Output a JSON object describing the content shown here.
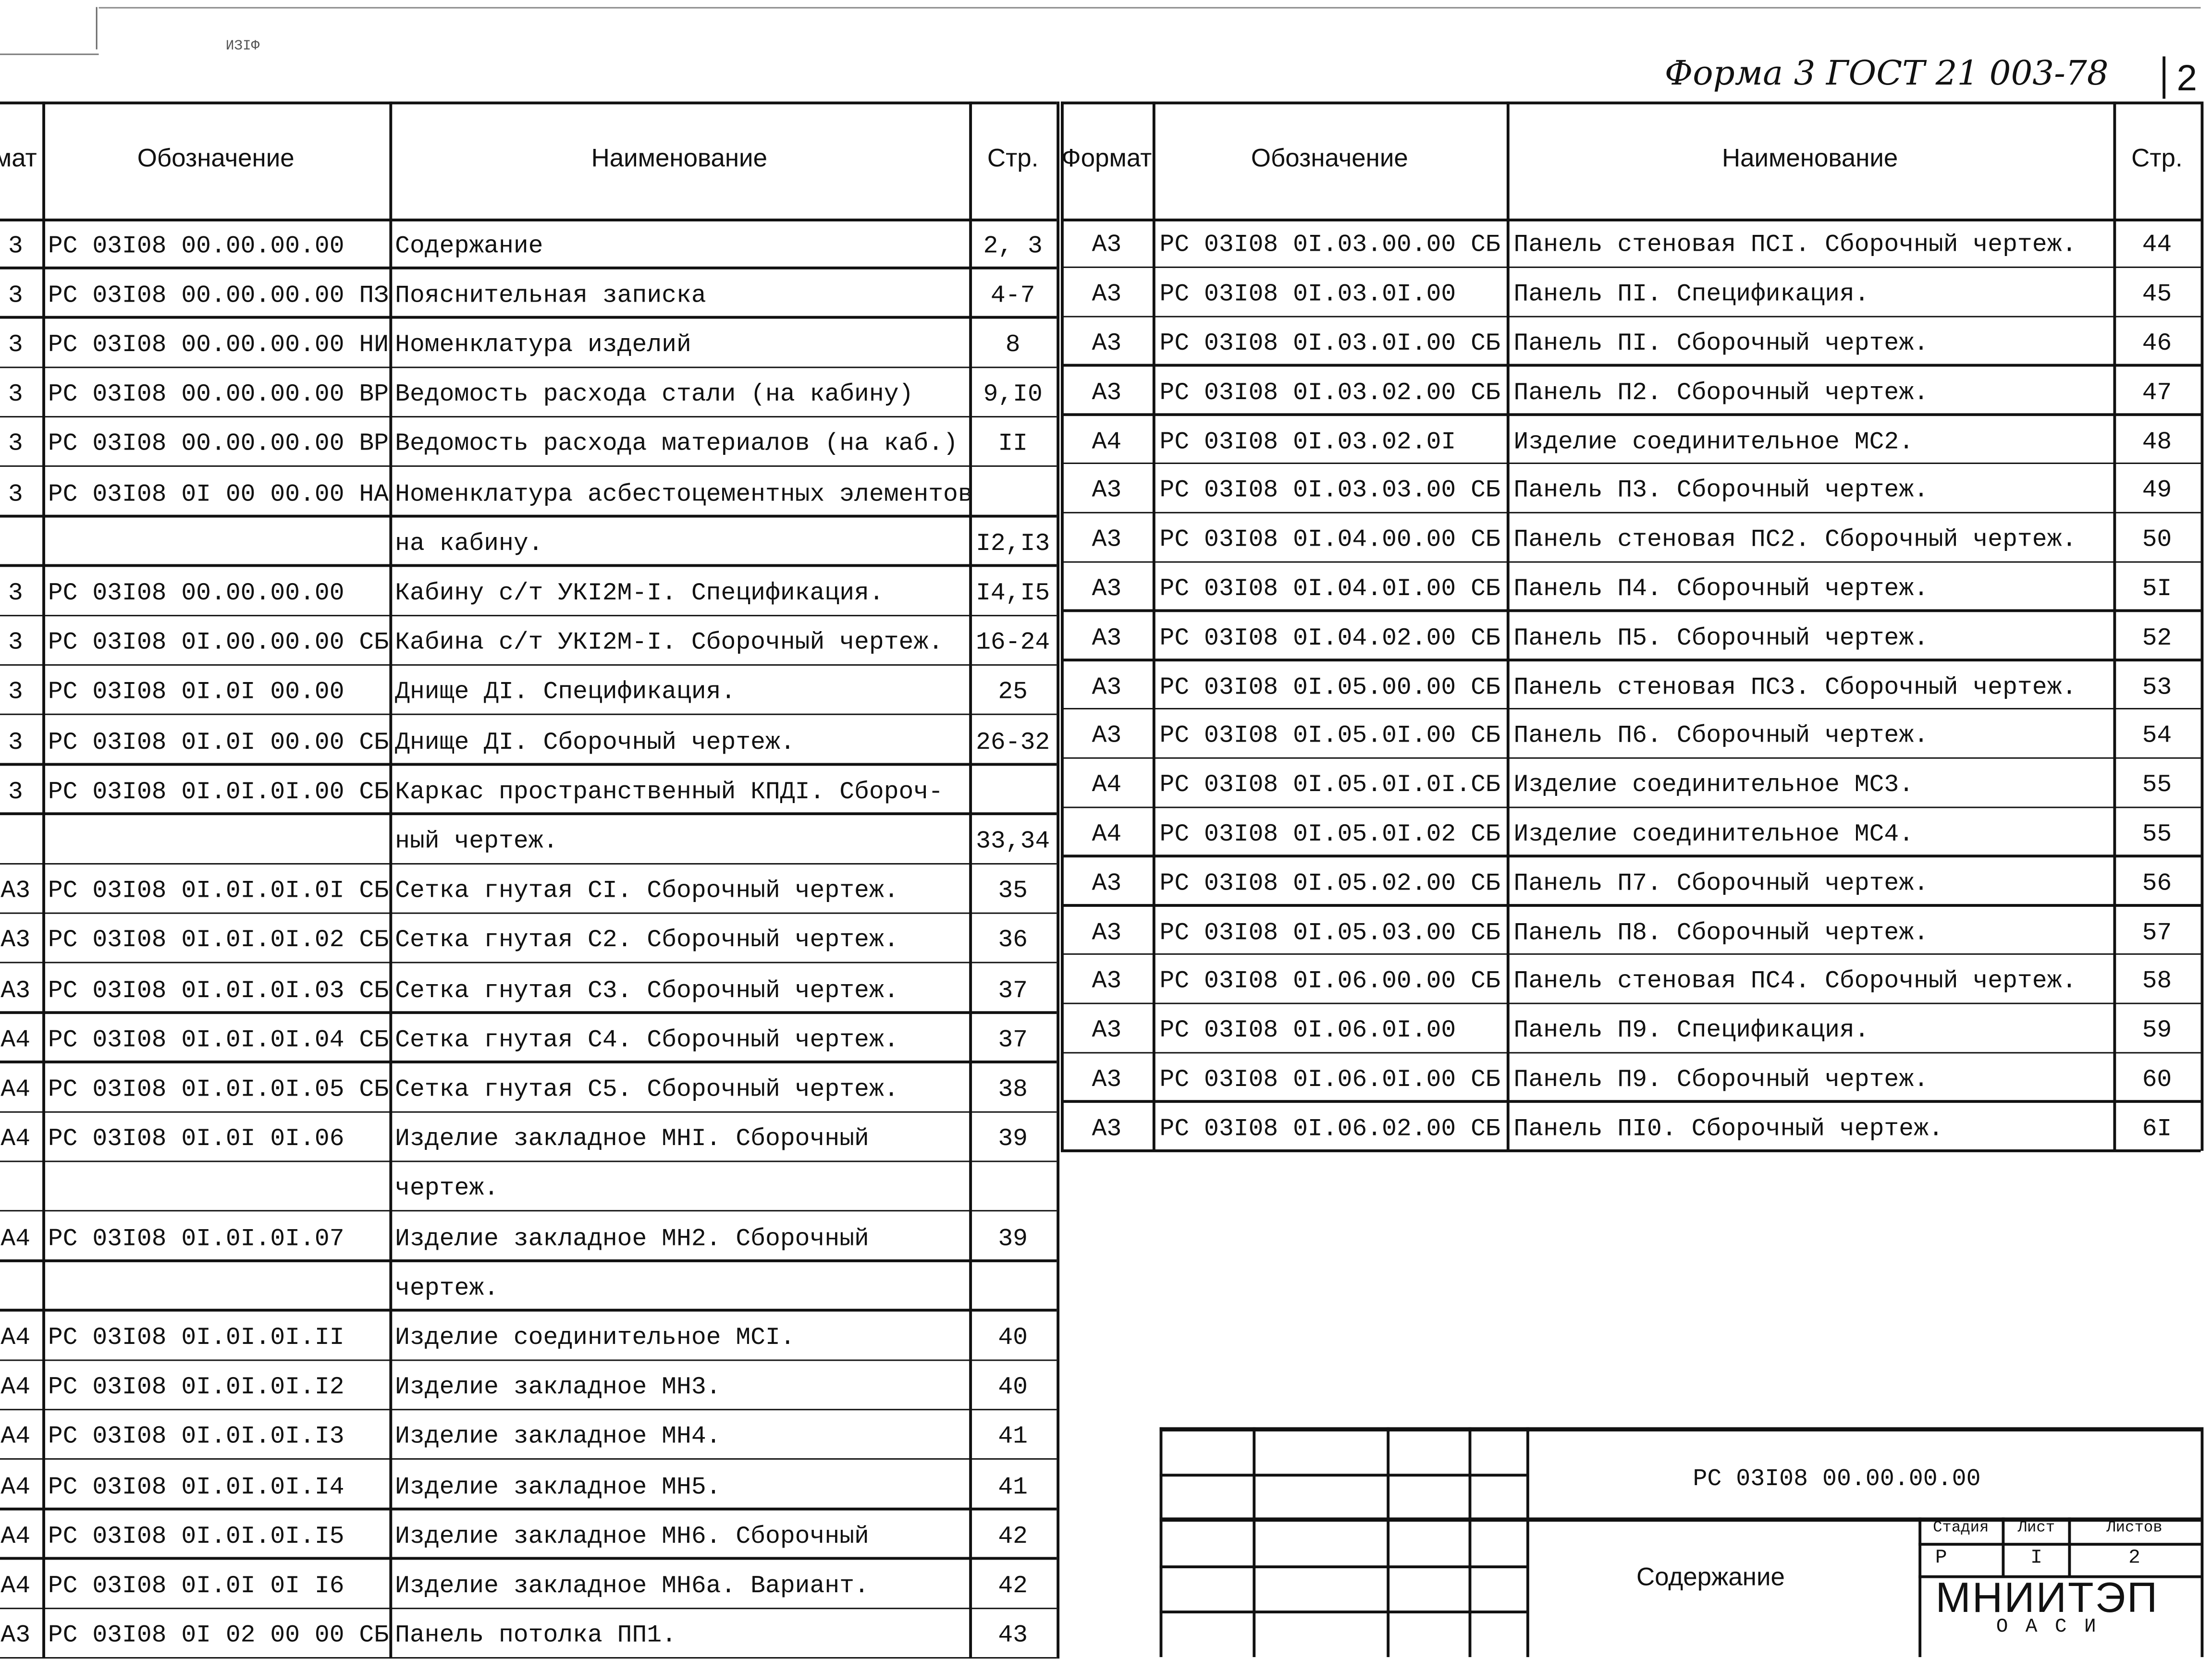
{
  "form_note": "Форма 3 ГОСТ 21 003-78",
  "sheet_corner_number": "2",
  "top_mark": "ИЗIФ",
  "left_table": {
    "headers": {
      "format": "мат",
      "code": "Обозначение",
      "name": "Наименование",
      "page": "Стр."
    },
    "rows": [
      {
        "format": "3",
        "code": "РС 03I08 00.00.00.00",
        "name": "Содержание",
        "page": "2, 3"
      },
      {
        "format": "3",
        "code": "РС 03I08 00.00.00.00 ПЗ",
        "name": "Пояснительная записка",
        "page": "4-7"
      },
      {
        "format": "3",
        "code": "РС 03I08 00.00.00.00 НИ",
        "name": "Номенклатура изделий",
        "page": "8"
      },
      {
        "format": "3",
        "code": "РС 03I08 00.00.00.00 ВР",
        "name": "Ведомость расхода стали (на кабину)",
        "page": "9,I0"
      },
      {
        "format": "3",
        "code": "РС 03I08 00.00.00.00 ВР",
        "name": "Ведомость расхода материалов (на каб.)",
        "page": "II"
      },
      {
        "format": "3",
        "code": "РС 03I08 0I 00 00.00 НА",
        "name": "Номенклатура асбестоцементных элементов",
        "page": ""
      },
      {
        "format": "",
        "code": "",
        "name": "на кабину.",
        "page": "I2,I3"
      },
      {
        "format": "3",
        "code": "РС 03I08 00.00.00.00",
        "name": "Кабину с/т УКI2М-I. Спецификация.",
        "page": "I4,I5"
      },
      {
        "format": "3",
        "code": "РС 03I08 0I.00.00.00 СБ",
        "name": "Кабина с/т УКI2М-I. Сборочный чертеж.",
        "page": "16-24"
      },
      {
        "format": "3",
        "code": "РС 03I08 0I.0I 00.00",
        "name": "Днище ДI. Спецификация.",
        "page": "25"
      },
      {
        "format": "3",
        "code": "РС 03I08 0I.0I 00.00 СБ",
        "name": "Днище ДI. Сборочный чертеж.",
        "page": "26-32"
      },
      {
        "format": "3",
        "code": "РС 03I08 0I.0I.0I.00 СБ",
        "name": "Каркас пространственный КПДI. Сбороч-",
        "page": ""
      },
      {
        "format": "",
        "code": "",
        "name": "ный чертеж.",
        "page": "33,34"
      },
      {
        "format": "А3",
        "code": "РС 03I08 0I.0I.0I.0I СБ",
        "name": "Сетка гнутая СI. Сборочный чертеж.",
        "page": "35"
      },
      {
        "format": "А3",
        "code": "РС 03I08 0I.0I.0I.02 СБ",
        "name": "Сетка гнутая С2. Сборочный чертеж.",
        "page": "36"
      },
      {
        "format": "А3",
        "code": "РС 03I08 0I.0I.0I.03 СБ",
        "name": "Сетка гнутая С3. Сборочный чертеж.",
        "page": "37"
      },
      {
        "format": "А4",
        "code": "РС 03I08 0I.0I.0I.04 СБ",
        "name": "Сетка гнутая С4. Сборочный чертеж.",
        "page": "37"
      },
      {
        "format": "А4",
        "code": "РС 03I08 0I.0I.0I.05 СБ",
        "name": "Сетка гнутая С5. Сборочный чертеж.",
        "page": "38"
      },
      {
        "format": "А4",
        "code": "РС 03I08 0I.0I 0I.06",
        "name": "Изделие закладное МНI. Сборочный",
        "page": "39"
      },
      {
        "format": "",
        "code": "",
        "name": "чертеж.",
        "page": ""
      },
      {
        "format": "А4",
        "code": "РС 03I08 0I.0I.0I.07",
        "name": "Изделие закладное МН2. Сборочный",
        "page": "39"
      },
      {
        "format": "",
        "code": "",
        "name": "чертеж.",
        "page": ""
      },
      {
        "format": "А4",
        "code": "РС 03I08 0I.0I.0I.II",
        "name": "Изделие соединительное МСI.",
        "page": "40"
      },
      {
        "format": "А4",
        "code": "РС 03I08 0I.0I.0I.I2",
        "name": "Изделие закладное МН3.",
        "page": "40"
      },
      {
        "format": "А4",
        "code": "РС 03I08 0I.0I.0I.I3",
        "name": "Изделие закладное МН4.",
        "page": "41"
      },
      {
        "format": "А4",
        "code": "РС 03I08 0I.0I.0I.I4",
        "name": "Изделие закладное МН5.",
        "page": "41"
      },
      {
        "format": "А4",
        "code": "РС 03I08 0I.0I.0I.I5",
        "name": "Изделие закладное МН6. Сборочный",
        "page": "42"
      },
      {
        "format": "А4",
        "code": "РС 03I08 0I.0I 0I I6",
        "name": "Изделие закладное МН6а. Вариант.",
        "page": "42"
      },
      {
        "format": "А3",
        "code": "РС 03I08 0I 02 00 00 СБ",
        "name": "Панель потолка ПП1.",
        "page": "43"
      }
    ]
  },
  "right_table": {
    "headers": {
      "format": "Формат",
      "code": "Обозначение",
      "name": "Наименование",
      "page": "Стр."
    },
    "rows": [
      {
        "format": "А3",
        "code": "РС 03I08 0I.03.00.00 СБ",
        "name": "Панель стеновая ПСI. Сборочный чертеж.",
        "page": "44"
      },
      {
        "format": "А3",
        "code": "РС 03I08 0I.03.0I.00",
        "name": "Панель ПI. Спецификация.",
        "page": "45"
      },
      {
        "format": "А3",
        "code": "РС 03I08 0I.03.0I.00 СБ",
        "name": "Панель ПI. Сборочный чертеж.",
        "page": "46"
      },
      {
        "format": "А3",
        "code": "РС 03I08 0I.03.02.00 СБ",
        "name": "Панель П2. Сборочный чертеж.",
        "page": "47"
      },
      {
        "format": "А4",
        "code": "РС 03I08 0I.03.02.0I",
        "name": "Изделие соединительное МС2.",
        "page": "48"
      },
      {
        "format": "А3",
        "code": "РС 03I08 0I.03.03.00 СБ",
        "name": "Панель П3. Сборочный чертеж.",
        "page": "49"
      },
      {
        "format": "А3",
        "code": "РС 03I08 0I.04.00.00 СБ",
        "name": "Панель стеновая ПС2. Сборочный чертеж.",
        "page": "50"
      },
      {
        "format": "А3",
        "code": "РС 03I08 0I.04.0I.00 СБ",
        "name": "Панель П4. Сборочный чертеж.",
        "page": "5I"
      },
      {
        "format": "А3",
        "code": "РС 03I08 0I.04.02.00 СБ",
        "name": "Панель П5. Сборочный чертеж.",
        "page": "52"
      },
      {
        "format": "А3",
        "code": "РС 03I08 0I.05.00.00 СБ",
        "name": "Панель стеновая ПС3. Сборочный чертеж.",
        "page": "53"
      },
      {
        "format": "А3",
        "code": "РС 03I08 0I.05.0I.00 СБ",
        "name": "Панель П6. Сборочный чертеж.",
        "page": "54"
      },
      {
        "format": "А4",
        "code": "РС 03I08 0I.05.0I.0I.СБ",
        "name": "Изделие соединительное МС3.",
        "page": "55"
      },
      {
        "format": "А4",
        "code": "РС 03I08 0I.05.0I.02 СБ",
        "name": "Изделие соединительное МС4.",
        "page": "55"
      },
      {
        "format": "А3",
        "code": "РС 03I08 0I.05.02.00 СБ",
        "name": "Панель П7. Сборочный чертеж.",
        "page": "56"
      },
      {
        "format": "А3",
        "code": "РС 03I08 0I.05.03.00 СБ",
        "name": "Панель П8. Сборочный чертеж.",
        "page": "57"
      },
      {
        "format": "А3",
        "code": "РС 03I08 0I.06.00.00 СБ",
        "name": "Панель стеновая ПС4. Сборочный чертеж.",
        "page": "58"
      },
      {
        "format": "А3",
        "code": "РС 03I08 0I.06.0I.00",
        "name": "Панель П9. Спецификация.",
        "page": "59"
      },
      {
        "format": "А3",
        "code": "РС 03I08 0I.06.0I.00 СБ",
        "name": "Панель П9. Сборочный чертеж.",
        "page": "60"
      },
      {
        "format": "А3",
        "code": "РС 03I08 0I.06.02.00 СБ",
        "name": "Панель ПI0. Сборочный чертеж.",
        "page": "6I"
      }
    ]
  },
  "title_block": {
    "document_code": "РС 03I08 00.00.00.00",
    "document_title": "Содержание",
    "stage_label": "Стадия",
    "sheet_label": "Лист",
    "sheets_label": "Листов",
    "stage": "Р",
    "sheet": "I",
    "sheets": "2",
    "organization": "МНИИТЭП",
    "organization_sub": "О А С И"
  }
}
